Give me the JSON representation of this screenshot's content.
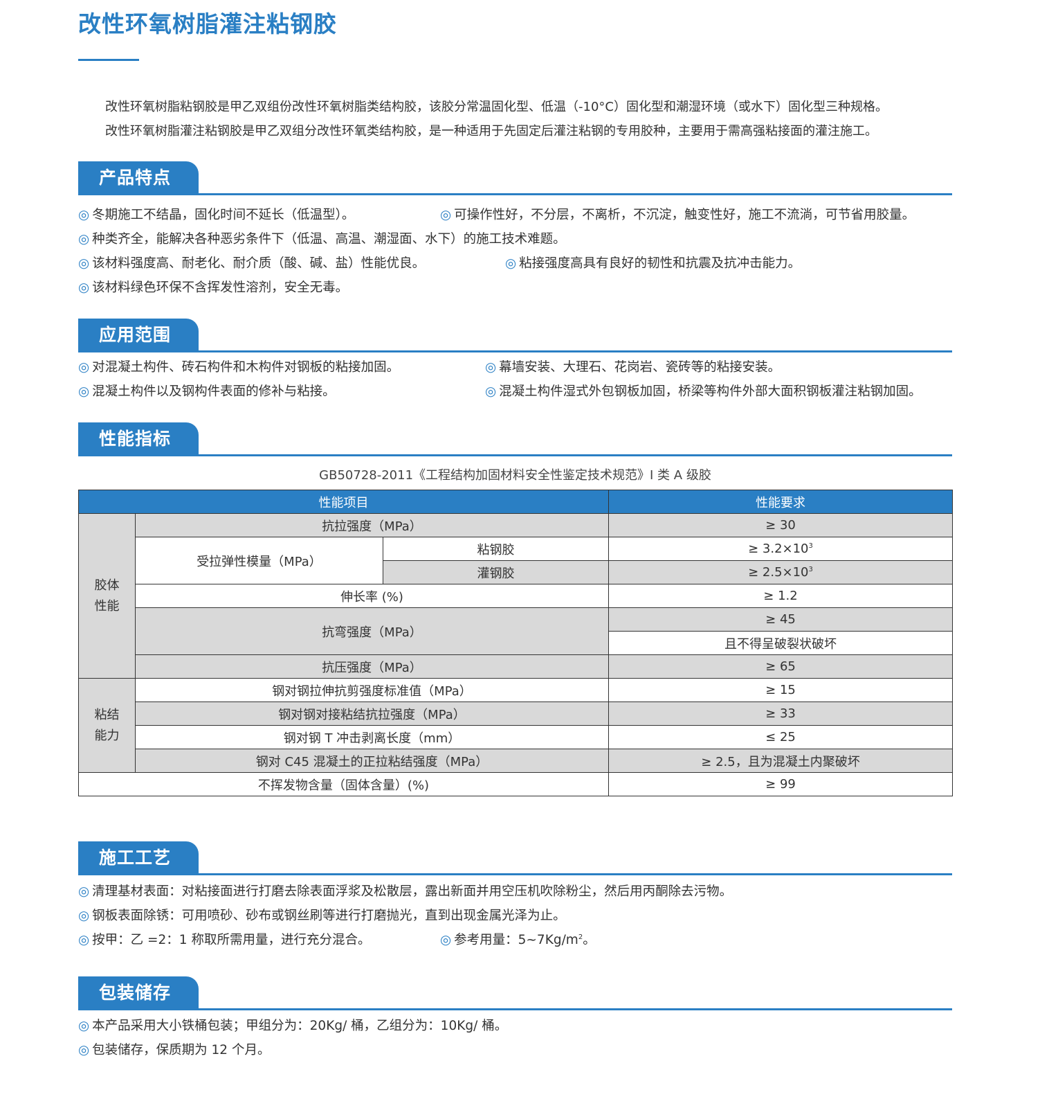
{
  "title": "改性环氧树脂灌注粘钢胶",
  "intro": [
    "改性环氧树脂粘钢胶是甲乙双组份改性环氧树脂类结构胶，该胶分常温固化型、低温（-10°C）固化型和潮湿环境（或水下）固化型三种规格。",
    "改性环氧树脂灌注粘钢胶是甲乙双组分改性环氧类结构胶，是一种适用于先固定后灌注粘钢的专用胶种，主要用于需高强粘接面的灌注施工。"
  ],
  "bullet": "◎",
  "accent_color": "#2a7fc4",
  "sections": {
    "features": {
      "title": "产品特点",
      "items": [
        "冬期施工不结晶，固化时间不延长（低温型）。",
        "可操作性好，不分层，不离析，不沉淀，触变性好，施工不流淌，可节省用胶量。",
        "种类齐全，能解决各种恶劣条件下（低温、高温、潮湿面、水下）的施工技术难题。",
        "该材料强度高、耐老化、耐介质（酸、碱、盐）性能优良。",
        "粘接强度高具有良好的韧性和抗震及抗冲击能力。",
        "该材料绿色环保不含挥发性溶剂，安全无毒。"
      ]
    },
    "applications": {
      "title": "应用范围",
      "items": [
        "对混凝土构件、砖石构件和木构件对钢板的粘接加固。",
        "幕墙安装、大理石、花岗岩、瓷砖等的粘接安装。",
        "混凝土构件以及钢构件表面的修补与粘接。",
        "混凝土构件湿式外包钢板加固，桥梁等构件外部大面积钢板灌注粘钢加固。"
      ]
    },
    "performance": {
      "title": "性能指标",
      "caption": "GB50728-2011《工程结构加固材料安全性鉴定技术规范》I 类 A 级胶",
      "table": {
        "headers": [
          "性能项目",
          "性能要求"
        ],
        "group1": "胶体性能",
        "group2": "粘结能力",
        "r1": [
          "抗拉强度（MPa）",
          "≥ 30"
        ],
        "r2": [
          "受拉弹性模量（MPa）",
          "粘钢胶",
          "≥ 3.2×10",
          "3"
        ],
        "r3": [
          "灌钢胶",
          "≥ 2.5×10",
          "3"
        ],
        "r4": [
          "伸长率 (%)",
          "≥ 1.2"
        ],
        "r5": [
          "抗弯强度（MPa）",
          "≥ 45",
          "且不得呈破裂状破坏"
        ],
        "r7": [
          "抗压强度（MPa）",
          "≥ 65"
        ],
        "r8": [
          "钢对钢拉伸抗剪强度标准值（MPa）",
          "≥ 15"
        ],
        "r9": [
          "钢对钢对接粘结抗拉强度（MPa）",
          "≥ 33"
        ],
        "r10": [
          "钢对钢 T 冲击剥离长度（mm）",
          "≤ 25"
        ],
        "r11": [
          "钢对 C45 混凝土的正拉粘结强度（MPa）",
          "≥ 2.5，且为混凝土内聚破坏"
        ],
        "r12": [
          "不挥发物含量（固体含量）(%)",
          "≥ 99"
        ]
      }
    },
    "process": {
      "title": "施工工艺",
      "items": [
        "清理基材表面：对粘接面进行打磨去除表面浮浆及松散层，露出新面并用空压机吹除粉尘，然后用丙酮除去污物。",
        "钢板表面除锈：可用喷砂、砂布或钢丝刷等进行打磨抛光，直到出现金属光泽为止。",
        "按甲：乙 =2：1 称取所需用量，进行充分混合。",
        "参考用量：5~7Kg/m",
        "2",
        "。"
      ]
    },
    "storage": {
      "title": "包装储存",
      "items": [
        "本产品采用大小铁桶包装；甲组分为：20Kg/ 桶，乙组分为：10Kg/ 桶。",
        "包装储存，保质期为 12 个月。"
      ]
    }
  }
}
